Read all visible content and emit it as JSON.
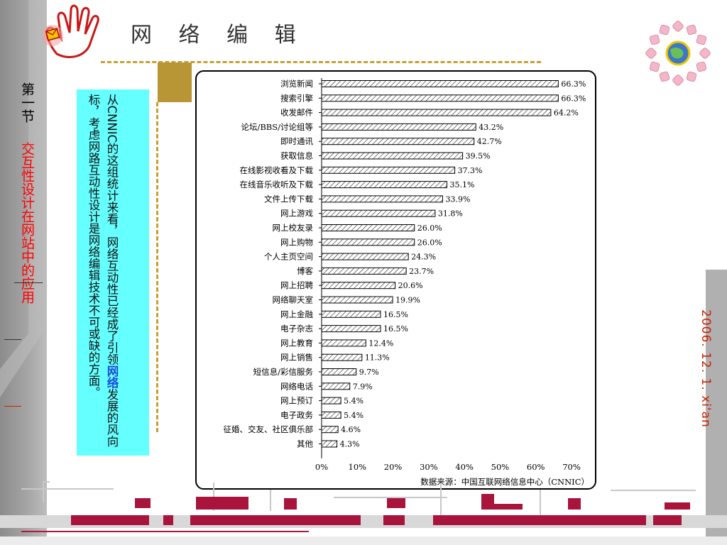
{
  "slide": {
    "title": "网 络 编 辑",
    "section_label": "第一节",
    "section_topic": "交互性设计在网站中的应用",
    "date": "2006. 12. 1. xi'an",
    "description_pre": "从CNNIC的这组统计来看，网络互动性已经成了引领",
    "description_highlight": "网络",
    "description_post": "发展的风向标，考虑网路互动性设计是网络编辑技术不可或缺的方面。"
  },
  "colors": {
    "accent_red": "#cc2200",
    "gold": "#b89636",
    "cyan_box": "#66ffff",
    "highlight_blue": "#1a4bd8"
  },
  "icons": [
    "hand-logo-icon",
    "globe-badge-icon"
  ],
  "chart_data": {
    "type": "bar",
    "orientation": "horizontal",
    "categories": [
      "浏览新闻",
      "搜索引擎",
      "收发邮件",
      "论坛/BBS/讨论组等",
      "即时通讯",
      "获取信息",
      "在线影视收看及下载",
      "在线音乐收听及下载",
      "文件上传下载",
      "网上游戏",
      "网上校友录",
      "网上购物",
      "个人主页空间",
      "博客",
      "网上招聘",
      "网络聊天室",
      "网上金融",
      "电子杂志",
      "网上教育",
      "网上销售",
      "短信息/彩信服务",
      "网络电话",
      "网上预订",
      "电子政务",
      "征婚、交友、社区俱乐部",
      "其他"
    ],
    "values": [
      66.3,
      66.3,
      64.2,
      43.2,
      42.7,
      39.5,
      37.3,
      35.1,
      33.9,
      31.8,
      26.0,
      26.0,
      24.3,
      23.7,
      20.6,
      19.9,
      16.5,
      16.5,
      12.4,
      11.3,
      9.7,
      7.9,
      5.4,
      5.4,
      4.6,
      4.3
    ],
    "value_labels": [
      "66.3%",
      "66.3%",
      "64.2%",
      "43.2%",
      "42.7%",
      "39.5%",
      "37.3%",
      "35.1%",
      "33.9%",
      "31.8%",
      "26.0%",
      "26.0%",
      "24.3%",
      "23.7%",
      "20.6%",
      "19.9%",
      "16.5%",
      "16.5%",
      "12.4%",
      "11.3%",
      "9.7%",
      "7.9%",
      "5.4%",
      "5.4%",
      "4.6%",
      "4.3%"
    ],
    "xlim": [
      0,
      70
    ],
    "xticks": [
      "0%",
      "10%",
      "20%",
      "30%",
      "40%",
      "50%",
      "60%",
      "70%"
    ],
    "source": "数据来源：中国互联网络信息中心（CNNIC）",
    "bar_pattern": "diagonal-hatch",
    "grid": false
  }
}
